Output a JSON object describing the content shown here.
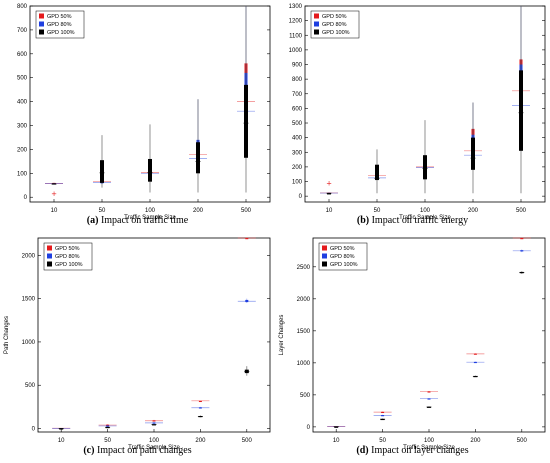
{
  "panels": [
    {
      "caption_letter": "(a)",
      "caption_text": "Impact on traffic time",
      "chart_data": {
        "type": "box",
        "categories": [
          "10",
          "50",
          "100",
          "200",
          "500"
        ],
        "xlabel": "Traffic Sample Size",
        "ylabel": "",
        "ylim": [
          -20,
          800
        ],
        "yticks": [
          0,
          100,
          200,
          300,
          400,
          500,
          600,
          700,
          800
        ],
        "legend": {
          "placement": "top-left",
          "entries": [
            "GPD 50%",
            "GPD 80%",
            "GPD 100%"
          ]
        },
        "series": [
          {
            "name": "GPD 50%",
            "color": "#e41a1c",
            "boxes": [
              {
                "whisker_low": 55,
                "q1": 55,
                "median": 58,
                "q3": 60,
                "whisker_high": 60,
                "outliers": [
                  15
                ]
              },
              {
                "whisker_low": 58,
                "q1": 60,
                "median": 65,
                "q3": 70,
                "whisker_high": 75,
                "outliers": []
              },
              {
                "whisker_low": 95,
                "q1": 100,
                "median": 103,
                "q3": 108,
                "whisker_high": 110,
                "outliers": []
              },
              {
                "whisker_low": 160,
                "q1": 170,
                "median": 178,
                "q3": 185,
                "whisker_high": 190,
                "outliers": []
              },
              {
                "whisker_low": 300,
                "q1": 370,
                "median": 400,
                "q3": 560,
                "whisker_high": 560,
                "outliers": []
              }
            ]
          },
          {
            "name": "GPD 80%",
            "color": "#1f3fe0",
            "boxes": [
              {
                "whisker_low": 55,
                "q1": 55,
                "median": 57,
                "q3": 58,
                "whisker_high": 58,
                "outliers": []
              },
              {
                "whisker_low": 55,
                "q1": 58,
                "median": 62,
                "q3": 66,
                "whisker_high": 70,
                "outliers": []
              },
              {
                "whisker_low": 92,
                "q1": 97,
                "median": 100,
                "q3": 105,
                "whisker_high": 108,
                "outliers": []
              },
              {
                "whisker_low": 150,
                "q1": 160,
                "median": 162,
                "q3": 240,
                "whisker_high": 410,
                "outliers": []
              },
              {
                "whisker_low": 200,
                "q1": 330,
                "median": 360,
                "q3": 520,
                "whisker_high": 800,
                "outliers": []
              }
            ]
          },
          {
            "name": "GPD 100%",
            "color": "#000000",
            "boxes": [
              {
                "whisker_low": 55,
                "q1": 55,
                "median": 55,
                "q3": 58,
                "whisker_high": 58,
                "outliers": []
              },
              {
                "whisker_low": 40,
                "q1": 60,
                "median": 102,
                "q3": 155,
                "whisker_high": 260,
                "outliers": []
              },
              {
                "whisker_low": 20,
                "q1": 65,
                "median": 103,
                "q3": 160,
                "whisker_high": 305,
                "outliers": []
              },
              {
                "whisker_low": 20,
                "q1": 100,
                "median": 150,
                "q3": 230,
                "whisker_high": 410,
                "outliers": []
              },
              {
                "whisker_low": 20,
                "q1": 165,
                "median": 310,
                "q3": 470,
                "whisker_high": 800,
                "outliers": []
              }
            ]
          }
        ]
      }
    },
    {
      "caption_letter": "(b)",
      "caption_text": "Impact on traffic energy",
      "chart_data": {
        "type": "box",
        "categories": [
          "10",
          "50",
          "100",
          "200",
          "500"
        ],
        "xlabel": "Traffic Sample Size",
        "ylabel": "",
        "ylim": [
          -40,
          1300
        ],
        "yticks": [
          0,
          100,
          200,
          300,
          400,
          500,
          600,
          700,
          800,
          900,
          1000,
          1100,
          1200,
          1300
        ],
        "legend": {
          "placement": "top-left",
          "entries": [
            "GPD 50%",
            "GPD 80%",
            "GPD 100%"
          ]
        },
        "series": [
          {
            "name": "GPD 50%",
            "color": "#e41a1c",
            "boxes": [
              {
                "whisker_low": 20,
                "q1": 20,
                "median": 22,
                "q3": 24,
                "whisker_high": 24,
                "outliers": [
                  90
                ]
              },
              {
                "whisker_low": 125,
                "q1": 130,
                "median": 140,
                "q3": 150,
                "whisker_high": 155,
                "outliers": []
              },
              {
                "whisker_low": 190,
                "q1": 195,
                "median": 200,
                "q3": 205,
                "whisker_high": 210,
                "outliers": []
              },
              {
                "whisker_low": 290,
                "q1": 300,
                "median": 310,
                "q3": 460,
                "whisker_high": 460,
                "outliers": []
              },
              {
                "whisker_low": 600,
                "q1": 700,
                "median": 720,
                "q3": 935,
                "whisker_high": 935,
                "outliers": []
              }
            ]
          },
          {
            "name": "GPD 80%",
            "color": "#1f3fe0",
            "boxes": [
              {
                "whisker_low": 20,
                "q1": 20,
                "median": 21,
                "q3": 22,
                "whisker_high": 22,
                "outliers": []
              },
              {
                "whisker_low": 115,
                "q1": 120,
                "median": 125,
                "q3": 135,
                "whisker_high": 140,
                "outliers": []
              },
              {
                "whisker_low": 185,
                "q1": 190,
                "median": 195,
                "q3": 200,
                "whisker_high": 205,
                "outliers": []
              },
              {
                "whisker_low": 250,
                "q1": 270,
                "median": 280,
                "q3": 420,
                "whisker_high": 640,
                "outliers": []
              },
              {
                "whisker_low": 550,
                "q1": 600,
                "median": 620,
                "q3": 900,
                "whisker_high": 1300,
                "outliers": []
              }
            ]
          },
          {
            "name": "GPD 100%",
            "color": "#000000",
            "boxes": [
              {
                "whisker_low": 18,
                "q1": 18,
                "median": 20,
                "q3": 20,
                "whisker_high": 20,
                "outliers": []
              },
              {
                "whisker_low": 20,
                "q1": 110,
                "median": 120,
                "q3": 215,
                "whisker_high": 320,
                "outliers": []
              },
              {
                "whisker_low": 20,
                "q1": 115,
                "median": 190,
                "q3": 280,
                "whisker_high": 520,
                "outliers": []
              },
              {
                "whisker_low": 20,
                "q1": 180,
                "median": 260,
                "q3": 400,
                "whisker_high": 640,
                "outliers": []
              },
              {
                "whisker_low": 20,
                "q1": 310,
                "median": 570,
                "q3": 860,
                "whisker_high": 1300,
                "outliers": []
              }
            ]
          }
        ]
      }
    },
    {
      "caption_letter": "(c)",
      "caption_text": "Impact on path changes",
      "chart_data": {
        "type": "box",
        "categories": [
          "10",
          "50",
          "100",
          "200",
          "500"
        ],
        "xlabel": "Traffic Sample Size",
        "ylabel": "Path Changes",
        "ylim": [
          -40,
          2200
        ],
        "yticks": [
          0,
          500,
          1000,
          1500,
          2000
        ],
        "legend": {
          "placement": "top-left",
          "entries": [
            "GPD 50%",
            "GPD 80%",
            "GPD 100%"
          ]
        },
        "series": [
          {
            "name": "GPD 50%",
            "color": "#e41a1c",
            "boxes": [
              {
                "whisker_low": 2,
                "q1": 2,
                "median": 3,
                "q3": 4,
                "whisker_high": 4,
                "outliers": []
              },
              {
                "whisker_low": 30,
                "q1": 35,
                "median": 40,
                "q3": 45,
                "whisker_high": 50,
                "outliers": []
              },
              {
                "whisker_low": 80,
                "q1": 85,
                "median": 90,
                "q3": 95,
                "whisker_high": 100,
                "outliers": []
              },
              {
                "whisker_low": 320,
                "q1": 320,
                "median": 320,
                "q3": 320,
                "whisker_high": 320,
                "outliers": []
              },
              {
                "whisker_low": 2200,
                "q1": 2200,
                "median": 2200,
                "q3": 2200,
                "whisker_high": 2200,
                "outliers": []
              }
            ]
          },
          {
            "name": "GPD 80%",
            "color": "#1f3fe0",
            "boxes": [
              {
                "whisker_low": 2,
                "q1": 2,
                "median": 2,
                "q3": 3,
                "whisker_high": 3,
                "outliers": []
              },
              {
                "whisker_low": 20,
                "q1": 25,
                "median": 30,
                "q3": 35,
                "whisker_high": 40,
                "outliers": []
              },
              {
                "whisker_low": 55,
                "q1": 60,
                "median": 65,
                "q3": 70,
                "whisker_high": 75,
                "outliers": []
              },
              {
                "whisker_low": 230,
                "q1": 235,
                "median": 240,
                "q3": 245,
                "whisker_high": 250,
                "outliers": []
              },
              {
                "whisker_low": 1450,
                "q1": 1460,
                "median": 1470,
                "q3": 1485,
                "whisker_high": 1500,
                "outliers": []
              }
            ]
          },
          {
            "name": "GPD 100%",
            "color": "#000000",
            "boxes": [
              {
                "whisker_low": 1,
                "q1": 1,
                "median": 1,
                "q3": 2,
                "whisker_high": 2,
                "outliers": []
              },
              {
                "whisker_low": 10,
                "q1": 12,
                "median": 15,
                "q3": 18,
                "whisker_high": 20,
                "outliers": []
              },
              {
                "whisker_low": 35,
                "q1": 40,
                "median": 45,
                "q3": 50,
                "whisker_high": 55,
                "outliers": []
              },
              {
                "whisker_low": 130,
                "q1": 135,
                "median": 140,
                "q3": 145,
                "whisker_high": 150,
                "outliers": []
              },
              {
                "whisker_low": 610,
                "q1": 640,
                "median": 660,
                "q3": 680,
                "whisker_high": 720,
                "outliers": []
              }
            ]
          }
        ]
      }
    },
    {
      "caption_letter": "(d)",
      "caption_text": "Impact on layer changes",
      "chart_data": {
        "type": "box",
        "categories": [
          "10",
          "50",
          "100",
          "200",
          "500"
        ],
        "xlabel": "Traffic Sample Size",
        "ylabel": "Layer Changes",
        "ylim": [
          -80,
          2950
        ],
        "yticks": [
          0,
          500,
          1000,
          1500,
          2000,
          2500
        ],
        "legend": {
          "placement": "top-left",
          "entries": [
            "GPD 50%",
            "GPD 80%",
            "GPD 100%"
          ]
        },
        "series": [
          {
            "name": "GPD 50%",
            "color": "#e41a1c",
            "boxes": [
              {
                "whisker_low": 5,
                "q1": 5,
                "median": 6,
                "q3": 7,
                "whisker_high": 7,
                "outliers": []
              },
              {
                "whisker_low": 220,
                "q1": 225,
                "median": 230,
                "q3": 235,
                "whisker_high": 240,
                "outliers": []
              },
              {
                "whisker_low": 540,
                "q1": 545,
                "median": 550,
                "q3": 555,
                "whisker_high": 560,
                "outliers": []
              },
              {
                "whisker_low": 1130,
                "q1": 1135,
                "median": 1140,
                "q3": 1145,
                "whisker_high": 1150,
                "outliers": []
              },
              {
                "whisker_low": 2950,
                "q1": 2950,
                "median": 2950,
                "q3": 2950,
                "whisker_high": 2950,
                "outliers": []
              }
            ]
          },
          {
            "name": "GPD 80%",
            "color": "#1f3fe0",
            "boxes": [
              {
                "whisker_low": 4,
                "q1": 4,
                "median": 5,
                "q3": 6,
                "whisker_high": 6,
                "outliers": []
              },
              {
                "whisker_low": 170,
                "q1": 175,
                "median": 180,
                "q3": 185,
                "whisker_high": 190,
                "outliers": []
              },
              {
                "whisker_low": 430,
                "q1": 435,
                "median": 440,
                "q3": 445,
                "whisker_high": 450,
                "outliers": []
              },
              {
                "whisker_low": 1000,
                "q1": 1005,
                "median": 1010,
                "q3": 1015,
                "whisker_high": 1020,
                "outliers": []
              },
              {
                "whisker_low": 2730,
                "q1": 2740,
                "median": 2750,
                "q3": 2760,
                "whisker_high": 2770,
                "outliers": []
              }
            ]
          },
          {
            "name": "GPD 100%",
            "color": "#000000",
            "boxes": [
              {
                "whisker_low": 3,
                "q1": 3,
                "median": 4,
                "q3": 5,
                "whisker_high": 5,
                "outliers": []
              },
              {
                "whisker_low": 110,
                "q1": 115,
                "median": 120,
                "q3": 125,
                "whisker_high": 130,
                "outliers": []
              },
              {
                "whisker_low": 300,
                "q1": 305,
                "median": 310,
                "q3": 315,
                "whisker_high": 320,
                "outliers": []
              },
              {
                "whisker_low": 780,
                "q1": 785,
                "median": 790,
                "q3": 795,
                "whisker_high": 800,
                "outliers": []
              },
              {
                "whisker_low": 2390,
                "q1": 2400,
                "median": 2410,
                "q3": 2420,
                "whisker_high": 2430,
                "outliers": []
              }
            ]
          }
        ]
      }
    }
  ]
}
